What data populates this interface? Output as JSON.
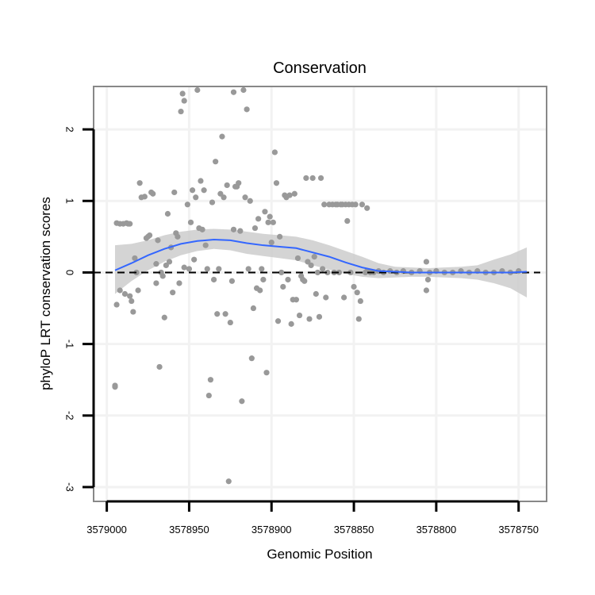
{
  "chart_data": {
    "type": "scatter",
    "title": "Conservation",
    "xlabel": "Genomic Position",
    "ylabel": "phyloP LRT conservation scores",
    "x_reversed": true,
    "xlim": [
      3579008,
      3578733
    ],
    "ylim": [
      -3.2,
      2.6
    ],
    "x_ticks": [
      3579000,
      3578950,
      3578900,
      3578850,
      3578800,
      3578750
    ],
    "x_tick_labels": [
      "3579000",
      "3578950",
      "3578900",
      "3578850",
      "3578800",
      "3578750"
    ],
    "y_ticks": [
      -3,
      -2,
      -1,
      0,
      1,
      2
    ],
    "y_tick_labels": [
      "-3",
      "-2",
      "-1",
      "0",
      "1",
      "2"
    ],
    "grid": true,
    "reference_line": {
      "y": 0,
      "style": "dashed",
      "color": "#000000"
    },
    "colors": {
      "points": "#999999",
      "smooth": "#3366ff",
      "ribbon": "#cccccc",
      "panel_border": "#888888",
      "grid": "#f2f2f2"
    },
    "points": [
      [
        3578995,
        -1.6
      ],
      [
        3578995,
        -1.58
      ],
      [
        3578994,
        0.69
      ],
      [
        3578994,
        -0.45
      ],
      [
        3578992,
        0.68
      ],
      [
        3578992,
        -0.25
      ],
      [
        3578990,
        0.68
      ],
      [
        3578989,
        -0.3
      ],
      [
        3578988,
        0.69
      ],
      [
        3578987,
        0.68
      ],
      [
        3578986,
        0.68
      ],
      [
        3578986,
        -0.33
      ],
      [
        3578985,
        -0.4
      ],
      [
        3578984,
        -0.55
      ],
      [
        3578983,
        0.2
      ],
      [
        3578982,
        0.0
      ],
      [
        3578981,
        -0.25
      ],
      [
        3578980,
        1.25
      ],
      [
        3578979,
        1.05
      ],
      [
        3578977,
        1.06
      ],
      [
        3578976,
        0.48
      ],
      [
        3578975,
        0.5
      ],
      [
        3578974,
        0.52
      ],
      [
        3578973,
        1.12
      ],
      [
        3578972,
        1.1
      ],
      [
        3578970,
        0.12
      ],
      [
        3578970,
        -0.15
      ],
      [
        3578969,
        0.45
      ],
      [
        3578968,
        -1.32
      ],
      [
        3578967,
        0.0
      ],
      [
        3578966,
        -0.05
      ],
      [
        3578965,
        -0.63
      ],
      [
        3578964,
        0.1
      ],
      [
        3578963,
        0.82
      ],
      [
        3578962,
        0.15
      ],
      [
        3578961,
        0.35
      ],
      [
        3578960,
        -0.28
      ],
      [
        3578959,
        1.12
      ],
      [
        3578958,
        0.55
      ],
      [
        3578957,
        0.5
      ],
      [
        3578956,
        -0.15
      ],
      [
        3578955,
        2.25
      ],
      [
        3578954,
        2.5
      ],
      [
        3578953,
        0.07
      ],
      [
        3578953,
        2.4
      ],
      [
        3578951,
        0.95
      ],
      [
        3578950,
        0.05
      ],
      [
        3578949,
        0.7
      ],
      [
        3578948,
        1.15
      ],
      [
        3578947,
        0.18
      ],
      [
        3578946,
        1.05
      ],
      [
        3578945,
        2.55
      ],
      [
        3578944,
        0.62
      ],
      [
        3578943,
        1.28
      ],
      [
        3578942,
        0.6
      ],
      [
        3578941,
        1.15
      ],
      [
        3578940,
        0.38
      ],
      [
        3578939,
        0.05
      ],
      [
        3578938,
        -1.72
      ],
      [
        3578937,
        -1.5
      ],
      [
        3578936,
        0.98
      ],
      [
        3578935,
        -0.1
      ],
      [
        3578934,
        1.55
      ],
      [
        3578933,
        -0.58
      ],
      [
        3578932,
        0.05
      ],
      [
        3578931,
        1.1
      ],
      [
        3578930,
        1.9
      ],
      [
        3578929,
        1.05
      ],
      [
        3578928,
        -0.58
      ],
      [
        3578927,
        1.22
      ],
      [
        3578926,
        -2.92
      ],
      [
        3578925,
        -0.7
      ],
      [
        3578924,
        -0.12
      ],
      [
        3578923,
        0.6
      ],
      [
        3578923,
        2.52
      ],
      [
        3578922,
        1.2
      ],
      [
        3578921,
        1.2
      ],
      [
        3578920,
        1.25
      ],
      [
        3578919,
        0.58
      ],
      [
        3578918,
        -1.8
      ],
      [
        3578917,
        2.55
      ],
      [
        3578916,
        1.05
      ],
      [
        3578915,
        2.28
      ],
      [
        3578914,
        0.05
      ],
      [
        3578913,
        1.0
      ],
      [
        3578912,
        -1.2
      ],
      [
        3578911,
        -0.5
      ],
      [
        3578910,
        0.62
      ],
      [
        3578909,
        -0.22
      ],
      [
        3578908,
        0.75
      ],
      [
        3578907,
        -0.25
      ],
      [
        3578906,
        0.05
      ],
      [
        3578905,
        -0.1
      ],
      [
        3578904,
        0.85
      ],
      [
        3578903,
        -1.4
      ],
      [
        3578902,
        0.7
      ],
      [
        3578901,
        0.78
      ],
      [
        3578900,
        0.42
      ],
      [
        3578899,
        0.7
      ],
      [
        3578898,
        1.68
      ],
      [
        3578897,
        1.25
      ],
      [
        3578896,
        -0.68
      ],
      [
        3578895,
        0.5
      ],
      [
        3578894,
        0.0
      ],
      [
        3578893,
        -0.2
      ],
      [
        3578892,
        1.08
      ],
      [
        3578891,
        1.05
      ],
      [
        3578890,
        -0.1
      ],
      [
        3578889,
        1.08
      ],
      [
        3578888,
        -0.72
      ],
      [
        3578887,
        -0.38
      ],
      [
        3578886,
        1.1
      ],
      [
        3578885,
        -0.38
      ],
      [
        3578884,
        0.2
      ],
      [
        3578883,
        -0.6
      ],
      [
        3578882,
        -0.05
      ],
      [
        3578881,
        -0.1
      ],
      [
        3578880,
        -0.12
      ],
      [
        3578879,
        1.32
      ],
      [
        3578878,
        0.15
      ],
      [
        3578877,
        -0.65
      ],
      [
        3578876,
        0.1
      ],
      [
        3578875,
        1.32
      ],
      [
        3578874,
        0.22
      ],
      [
        3578873,
        -0.3
      ],
      [
        3578872,
        0.0
      ],
      [
        3578871,
        -0.62
      ],
      [
        3578870,
        1.32
      ],
      [
        3578869,
        0.05
      ],
      [
        3578868,
        0.95
      ],
      [
        3578867,
        -0.35
      ],
      [
        3578866,
        0.0
      ],
      [
        3578865,
        0.95
      ],
      [
        3578863,
        0.95
      ],
      [
        3578862,
        0.0
      ],
      [
        3578861,
        0.95
      ],
      [
        3578860,
        0.95
      ],
      [
        3578859,
        0.0
      ],
      [
        3578858,
        0.95
      ],
      [
        3578857,
        0.95
      ],
      [
        3578856,
        -0.35
      ],
      [
        3578855,
        0.95
      ],
      [
        3578854,
        0.72
      ],
      [
        3578853,
        0.95
      ],
      [
        3578852,
        0.0
      ],
      [
        3578851,
        0.95
      ],
      [
        3578850,
        -0.2
      ],
      [
        3578849,
        0.95
      ],
      [
        3578848,
        -0.28
      ],
      [
        3578847,
        -0.65
      ],
      [
        3578846,
        -0.4
      ],
      [
        3578845,
        0.95
      ],
      [
        3578843,
        0.0
      ],
      [
        3578842,
        0.9
      ],
      [
        3578842,
        0.02
      ],
      [
        3578840,
        0.0
      ],
      [
        3578838,
        0.0
      ],
      [
        3578835,
        0.02
      ],
      [
        3578832,
        0.0
      ],
      [
        3578828,
        0.02
      ],
      [
        3578824,
        0.0
      ],
      [
        3578820,
        0.02
      ],
      [
        3578815,
        0.0
      ],
      [
        3578810,
        0.02
      ],
      [
        3578806,
        -0.25
      ],
      [
        3578806,
        0.15
      ],
      [
        3578805,
        -0.1
      ],
      [
        3578804,
        0.0
      ],
      [
        3578800,
        0.02
      ],
      [
        3578795,
        0.0
      ],
      [
        3578790,
        0.0
      ],
      [
        3578785,
        0.02
      ],
      [
        3578780,
        0.0
      ],
      [
        3578775,
        0.02
      ],
      [
        3578770,
        0.0
      ],
      [
        3578765,
        0.0
      ],
      [
        3578760,
        0.02
      ],
      [
        3578755,
        0.0
      ],
      [
        3578750,
        0.02
      ]
    ],
    "smooth": {
      "x": [
        3578995,
        3578985,
        3578975,
        3578965,
        3578955,
        3578945,
        3578935,
        3578925,
        3578915,
        3578905,
        3578895,
        3578885,
        3578875,
        3578865,
        3578855,
        3578845,
        3578835,
        3578825,
        3578815,
        3578805,
        3578795,
        3578785,
        3578775,
        3578765,
        3578755,
        3578745
      ],
      "y": [
        0.03,
        0.13,
        0.24,
        0.33,
        0.4,
        0.44,
        0.46,
        0.45,
        0.41,
        0.38,
        0.36,
        0.34,
        0.28,
        0.22,
        0.14,
        0.07,
        0.02,
        0.01,
        0.0,
        0.0,
        0.0,
        0.0,
        0.0,
        0.0,
        0.0,
        0.01
      ],
      "lower": [
        -0.3,
        -0.12,
        0.03,
        0.15,
        0.24,
        0.3,
        0.33,
        0.31,
        0.26,
        0.23,
        0.2,
        0.17,
        0.1,
        0.04,
        -0.02,
        -0.06,
        -0.08,
        -0.07,
        -0.06,
        -0.06,
        -0.07,
        -0.08,
        -0.1,
        -0.15,
        -0.22,
        -0.35
      ],
      "upper": [
        0.38,
        0.4,
        0.45,
        0.52,
        0.57,
        0.6,
        0.61,
        0.6,
        0.57,
        0.54,
        0.52,
        0.5,
        0.45,
        0.38,
        0.3,
        0.22,
        0.13,
        0.08,
        0.07,
        0.06,
        0.07,
        0.08,
        0.1,
        0.18,
        0.25,
        0.35
      ]
    }
  }
}
